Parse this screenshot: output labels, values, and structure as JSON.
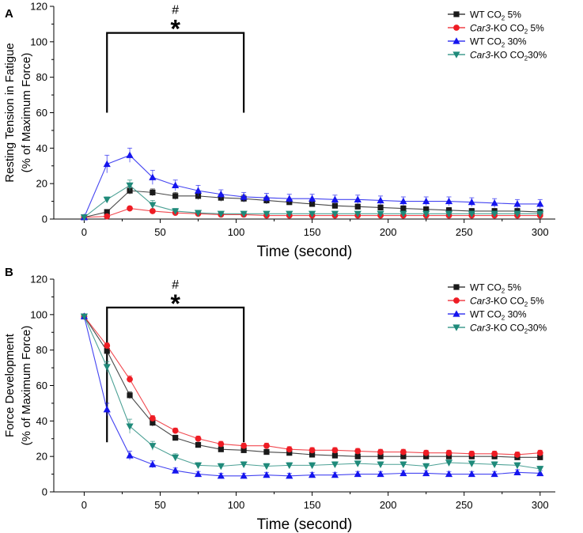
{
  "chart_data": [
    {
      "id": "A",
      "type": "line",
      "panel_label": "A",
      "ylabel_lines": [
        "Resting Tension in Fatigue",
        "(% of Maximum Force)"
      ],
      "xlabel": "Time (second)",
      "xlim": [
        -20,
        310
      ],
      "ylim": [
        0,
        120
      ],
      "xticks": [
        "0",
        "50",
        "100",
        "150",
        "200",
        "250",
        "300"
      ],
      "xtick_values": [
        0,
        50,
        100,
        150,
        200,
        250,
        300
      ],
      "yticks": [
        "0",
        "20",
        "40",
        "60",
        "80",
        "100",
        "120"
      ],
      "ytick_values": [
        0,
        20,
        40,
        60,
        80,
        100,
        120
      ],
      "significance": {
        "hash": "#",
        "star": "*",
        "x_start": 15,
        "x_end": 105,
        "y_bar": 105,
        "y_bottom": 60
      },
      "x": [
        0,
        15,
        30,
        45,
        60,
        75,
        90,
        105,
        120,
        135,
        150,
        165,
        180,
        195,
        210,
        225,
        240,
        255,
        270,
        285,
        300
      ],
      "series": [
        {
          "key": "wt5",
          "name": "WT CO₂ 5%",
          "color": "#1a1a1a",
          "marker": "square",
          "values": [
            1,
            4,
            16,
            15,
            13,
            13,
            12,
            11.5,
            10.5,
            9.5,
            8.5,
            7.5,
            7,
            6.5,
            6,
            5.5,
            5,
            4.5,
            4.5,
            4.5,
            4
          ],
          "errors": [
            0.5,
            1,
            2,
            2,
            2,
            2,
            2,
            2,
            2,
            1.5,
            1.5,
            1.5,
            1.5,
            1.5,
            1.5,
            1.5,
            1.5,
            1.5,
            1.5,
            1.5,
            1.5
          ]
        },
        {
          "key": "ko5",
          "name": "Car3-KO CO₂ 5%",
          "color": "#ee1c24",
          "marker": "circle",
          "values": [
            1,
            1.5,
            6,
            4.5,
            3.5,
            3,
            2.5,
            2.5,
            2,
            2,
            2,
            2,
            2,
            2,
            2,
            2,
            2,
            2,
            2,
            2,
            2
          ],
          "errors": [
            0.5,
            0.5,
            1,
            1,
            0.8,
            0.8,
            0.8,
            0.8,
            0.8,
            0.8,
            0.8,
            0.8,
            0.8,
            0.8,
            0.8,
            0.8,
            0.8,
            0.8,
            0.8,
            0.8,
            0.8
          ]
        },
        {
          "key": "wt30",
          "name": "WT CO₂ 30%",
          "color": "#1515ee",
          "marker": "triangle-up",
          "values": [
            1,
            31,
            36,
            23.5,
            19,
            16,
            14,
            12.5,
            12,
            11.5,
            11.5,
            11,
            11,
            10.5,
            10,
            10,
            10,
            9.5,
            9,
            8.5,
            8.5
          ],
          "errors": [
            0.5,
            5,
            4,
            4,
            3,
            3,
            2.5,
            2.5,
            2.5,
            2.5,
            2.5,
            2.5,
            2.5,
            2.5,
            2.5,
            2.5,
            2.5,
            2.5,
            2.5,
            2.5,
            2.5
          ]
        },
        {
          "key": "ko30",
          "name": "Car3-KO CO₂30%",
          "color": "#1f8a7a",
          "marker": "triangle-down",
          "values": [
            1,
            11,
            19,
            8,
            4.5,
            3.5,
            3,
            3,
            3,
            3,
            3,
            3,
            3,
            3,
            3,
            3,
            3,
            3,
            3,
            3,
            3
          ],
          "errors": [
            0.5,
            1.5,
            3,
            2.5,
            1.5,
            1,
            1,
            1,
            1,
            1,
            1,
            1,
            1,
            1,
            1,
            1,
            1,
            1,
            1,
            1,
            1
          ]
        }
      ],
      "legend": [
        {
          "key": "wt5",
          "prefix": "WT CO",
          "sub": "2",
          "suffix": " 5%"
        },
        {
          "key": "ko5",
          "italic": "Car3",
          "prefix": "-KO CO",
          "sub": "2",
          "suffix": " 5%"
        },
        {
          "key": "wt30",
          "prefix": "WT CO",
          "sub": "2",
          "suffix": " 30%"
        },
        {
          "key": "ko30",
          "italic": "Car3",
          "prefix": "-KO  CO",
          "sub": "2",
          "suffix": "30%"
        }
      ]
    },
    {
      "id": "B",
      "type": "line",
      "panel_label": "B",
      "ylabel_lines": [
        "Force Development",
        "(% of Maximum Force)"
      ],
      "xlabel": "Time (second)",
      "xlim": [
        -20,
        310
      ],
      "ylim": [
        0,
        120
      ],
      "xticks": [
        "0",
        "50",
        "100",
        "150",
        "200",
        "250",
        "300"
      ],
      "xtick_values": [
        0,
        50,
        100,
        150,
        200,
        250,
        300
      ],
      "yticks": [
        "0",
        "20",
        "40",
        "60",
        "80",
        "100",
        "120"
      ],
      "ytick_values": [
        0,
        20,
        40,
        60,
        80,
        100,
        120
      ],
      "significance": {
        "hash": "#",
        "star": "*",
        "x_start": 15,
        "x_end": 105,
        "y_bar": 104,
        "y_bottom": 28
      },
      "x": [
        0,
        15,
        30,
        45,
        60,
        75,
        90,
        105,
        120,
        135,
        150,
        165,
        180,
        195,
        210,
        225,
        240,
        255,
        270,
        285,
        300
      ],
      "series": [
        {
          "key": "wt5",
          "name": "WT CO₂ 5%",
          "color": "#1a1a1a",
          "marker": "square",
          "values": [
            99,
            79.5,
            54.5,
            39,
            30.5,
            26.5,
            24,
            23.5,
            22.5,
            22,
            21,
            20.5,
            20,
            20,
            20,
            20,
            20,
            20,
            20,
            19.5,
            19.5
          ],
          "errors": [
            1,
            2,
            2,
            2,
            1.5,
            1.5,
            1.5,
            1.5,
            1.5,
            1.5,
            1.5,
            1.5,
            1.5,
            1.5,
            1.5,
            1.5,
            1.5,
            1.5,
            1.5,
            1.5,
            1.5
          ]
        },
        {
          "key": "ko5",
          "name": "Car3-KO CO₂ 5%",
          "color": "#ee1c24",
          "marker": "circle",
          "values": [
            99,
            82.5,
            63.5,
            41.5,
            34.5,
            30,
            27,
            26,
            26,
            24,
            23.5,
            23.5,
            23,
            22.5,
            22.5,
            22,
            22,
            21.5,
            21.5,
            21,
            22
          ],
          "errors": [
            1,
            1.5,
            2,
            1.5,
            1.5,
            1.5,
            1.5,
            1.5,
            1.5,
            1.5,
            1.5,
            1.5,
            1.5,
            1.5,
            1.5,
            1.5,
            1.5,
            1.5,
            1.5,
            1.5,
            1.5
          ]
        },
        {
          "key": "wt30",
          "name": "WT CO₂ 30%",
          "color": "#1515ee",
          "marker": "triangle-up",
          "values": [
            99,
            46.5,
            20.5,
            15.5,
            12,
            10,
            9,
            9,
            9.5,
            9,
            9.5,
            9.5,
            10,
            10,
            10.5,
            10.5,
            10,
            10,
            10,
            11,
            10.5
          ],
          "errors": [
            1,
            3.5,
            2.5,
            2,
            1.5,
            1.5,
            1.5,
            1.5,
            1.5,
            1.5,
            1.5,
            1.5,
            1.5,
            1.5,
            1.5,
            1.5,
            1.5,
            1.5,
            1.5,
            1.5,
            1.5
          ]
        },
        {
          "key": "ko30",
          "name": "Car3-KO CO₂30%",
          "color": "#1f8a7a",
          "marker": "triangle-down",
          "values": [
            99,
            70.5,
            37,
            26,
            19.5,
            15,
            14.5,
            15.5,
            14.5,
            15,
            15,
            15.5,
            16,
            15.5,
            15.5,
            14.5,
            16.5,
            16,
            15.5,
            15,
            13
          ],
          "errors": [
            1,
            3,
            4,
            2.5,
            2,
            1.5,
            1.5,
            1.5,
            1.5,
            1.5,
            1.5,
            1.5,
            1.5,
            1.5,
            1.5,
            1.5,
            1.5,
            1.5,
            1.5,
            1.5,
            1.5
          ]
        }
      ],
      "legend": [
        {
          "key": "wt5",
          "prefix": "WT CO",
          "sub": "2",
          "suffix": " 5%"
        },
        {
          "key": "ko5",
          "italic": "Car3",
          "prefix": "-KO CO",
          "sub": "2",
          "suffix": " 5%"
        },
        {
          "key": "wt30",
          "prefix": "WT CO",
          "sub": "2",
          "suffix": " 30%"
        },
        {
          "key": "ko30",
          "italic": "Car3",
          "prefix": "-KO  CO",
          "sub": "2",
          "suffix": "30%"
        }
      ]
    }
  ]
}
